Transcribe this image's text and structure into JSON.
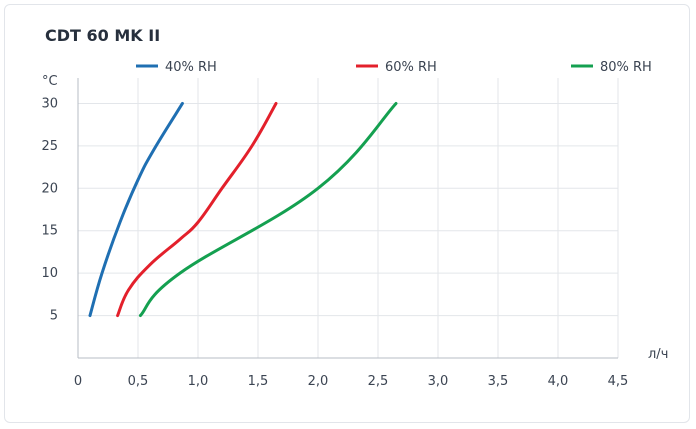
{
  "chart_data": {
    "type": "line",
    "title": "CDT 60 MK II",
    "xlabel": "л/ч",
    "ylabel": "°C",
    "xlim": [
      0,
      4.5
    ],
    "ylim": [
      0,
      33
    ],
    "x_ticks": [
      "0",
      "0,5",
      "1,0",
      "1,5",
      "2,0",
      "2,5",
      "3,0",
      "3,5",
      "4,0",
      "4,5"
    ],
    "y_ticks": [
      "5",
      "10",
      "15",
      "20",
      "25",
      "30"
    ],
    "grid": true,
    "legend_position": "top",
    "series": [
      {
        "name": "40% RH",
        "color": "#1f6fb2",
        "points": [
          [
            0.1,
            5
          ],
          [
            0.2,
            10
          ],
          [
            0.35,
            16
          ],
          [
            0.5,
            21
          ],
          [
            0.63,
            24.5
          ],
          [
            0.87,
            30
          ]
        ]
      },
      {
        "name": "60% RH",
        "color": "#e3202b",
        "points": [
          [
            0.33,
            5
          ],
          [
            0.42,
            8
          ],
          [
            0.6,
            11
          ],
          [
            0.85,
            14
          ],
          [
            1.0,
            16
          ],
          [
            1.2,
            20
          ],
          [
            1.45,
            25
          ],
          [
            1.65,
            30
          ]
        ]
      },
      {
        "name": "80% RH",
        "color": "#14a050",
        "points": [
          [
            0.52,
            5
          ],
          [
            0.85,
            10
          ],
          [
            2.0,
            20
          ],
          [
            2.65,
            30
          ]
        ]
      }
    ]
  }
}
